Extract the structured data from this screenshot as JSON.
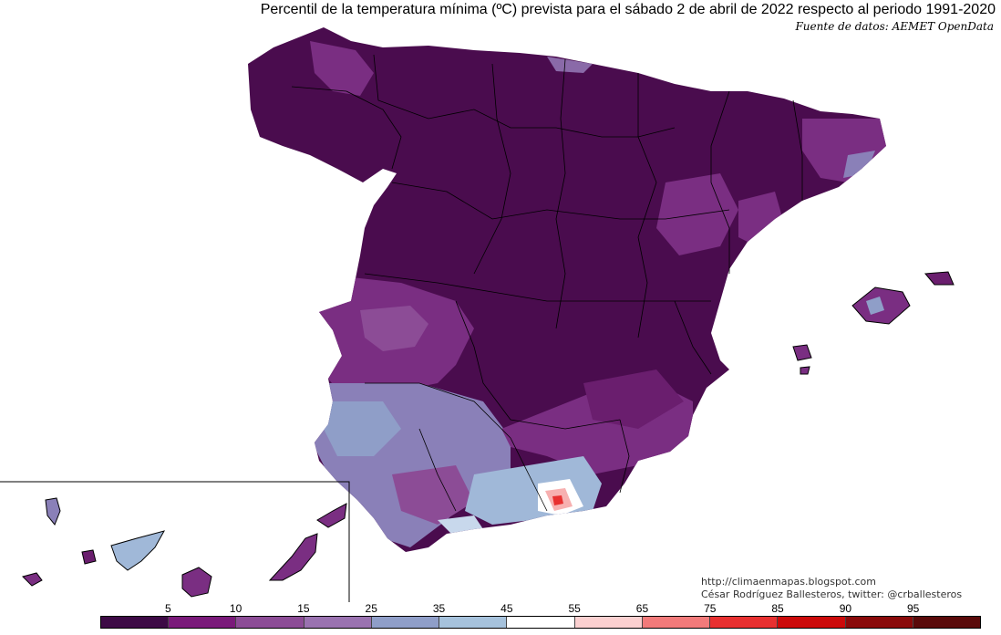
{
  "title": "Percentil de la temperatura mínima (ºC) prevista para el sábado 2 de abril de 2022 respecto al periodo 1991-2020",
  "source": "Fuente de datos: AEMET OpenData",
  "credits": {
    "url": "http://climaenmapas.blogspot.com",
    "author": "César Rodríguez Ballesteros, twitter: @crballesteros"
  },
  "legend": {
    "ticks": [
      "5",
      "10",
      "15",
      "25",
      "35",
      "45",
      "55",
      "65",
      "75",
      "85",
      "90",
      "95"
    ],
    "colors": [
      "#3d0a45",
      "#7a1a7a",
      "#8c4c96",
      "#9a72b0",
      "#8f9ec8",
      "#a6c2dc",
      "#ffffff",
      "#fbd0d0",
      "#f27a7a",
      "#e83030",
      "#cc0a0a",
      "#8a0a0a",
      "#5a0a0a"
    ]
  },
  "colors": {
    "dominant": "#4a0c4e",
    "west_purple": "#7a2e82",
    "southwest_lavender": "#8a80b8",
    "southeast_light": "#a0b8d8"
  }
}
